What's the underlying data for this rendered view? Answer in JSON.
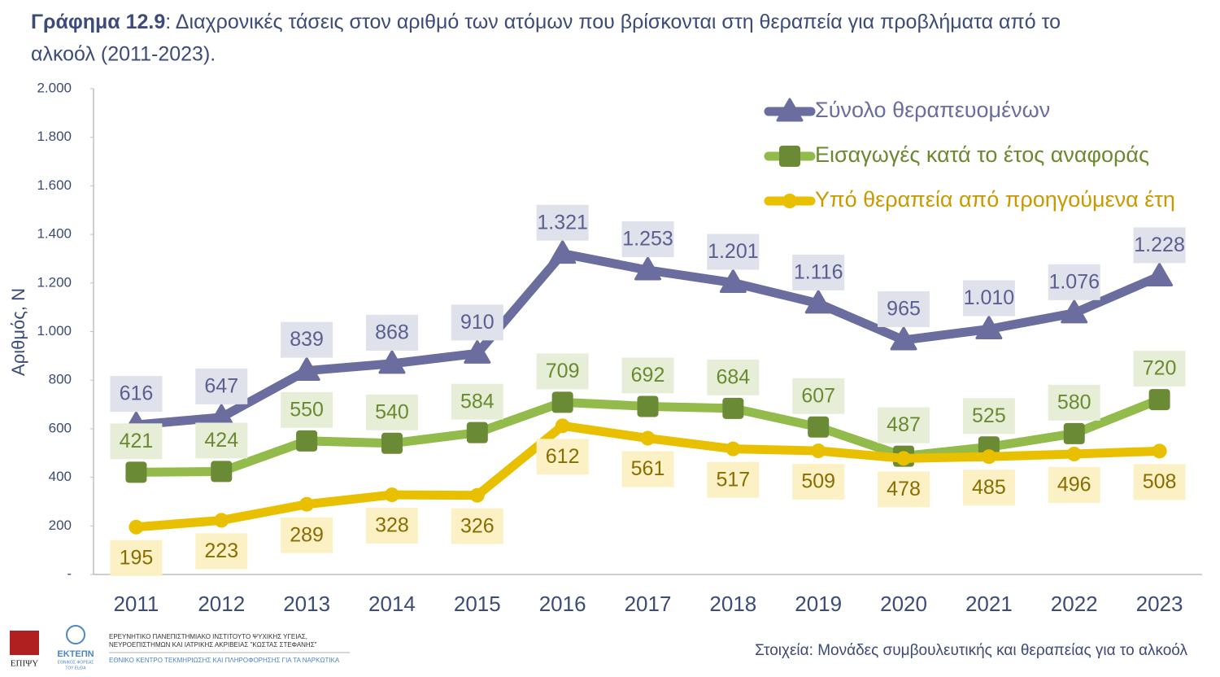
{
  "chart_data": {
    "type": "line",
    "title_label": "Γράφημα 12.9",
    "title": ": Διαχρονικές τάσεις στον αριθμό των ατόμων που βρίσκονται στη θεραπεία για προβλήματα από το",
    "title_line2": "αλκοόλ (2011-2023).",
    "y_label": "Αριθμός, N",
    "categories": [
      "2011",
      "2012",
      "2013",
      "2014",
      "2015",
      "2016",
      "2017",
      "2018",
      "2019",
      "2020",
      "2021",
      "2022",
      "2023"
    ],
    "series": [
      {
        "name": "Σύνολο θεραπευομένων",
        "color": "#6a6d9e",
        "marker": "triangle",
        "marker_color": "#6a6d9e",
        "label_position": "above",
        "values": [
          616,
          647,
          839,
          868,
          910,
          1321,
          1253,
          1201,
          1116,
          965,
          1010,
          1076,
          1228
        ],
        "value_labels": [
          "616",
          "647",
          "839",
          "868",
          "910",
          "1.321",
          "1.253",
          "1.201",
          "1.116",
          "965",
          "1.010",
          "1.076",
          "1.228"
        ]
      },
      {
        "name": "Εισαγωγές κατά το έτος αναφοράς",
        "color": "#92bb4b",
        "marker": "square",
        "marker_color": "#6b8a35",
        "label_position": "above",
        "values": [
          421,
          424,
          550,
          540,
          584,
          709,
          692,
          684,
          607,
          487,
          525,
          580,
          720
        ]
      },
      {
        "name": "Υπό θεραπεία από προηγούμενα έτη",
        "color": "#e8c000",
        "marker": "circle",
        "marker_color": "#e8c000",
        "label_position": "below",
        "values": [
          195,
          223,
          289,
          328,
          326,
          612,
          561,
          517,
          509,
          478,
          485,
          496,
          508
        ]
      }
    ],
    "ylim": [
      0,
      2000
    ],
    "yticks": [
      {
        "value": 0,
        "label": "-"
      },
      200,
      400,
      600,
      800,
      {
        "value": 1000,
        "label": "1.000"
      },
      {
        "value": 1200,
        "label": "1.200"
      },
      {
        "value": 1400,
        "label": "1.400"
      },
      {
        "value": 1600,
        "label": "1.600"
      },
      {
        "value": 1800,
        "label": "1.800"
      },
      {
        "value": 2000,
        "label": "2.000"
      }
    ],
    "grid": false,
    "legend": "top-right",
    "source": "Στοιχεία: Μονάδες συμβουλευτικής και θεραπείας για το αλκοόλ"
  },
  "footer": {
    "logo1": "ΕΠΙΨΥ",
    "logo2": "ΕΚΤΕΠΝ",
    "logo2_sub1": "ΕΘΝΙΚΟΣ ΦΟΡΕΑΣ",
    "logo2_sub2": "ΤΟΥ EUDA",
    "institute_line1": "ΕΡΕΥΝΗΤΙΚΟ ΠΑΝΕΠΙΣΤΗΜΙΑΚΟ ΙΝΣΤΙΤΟΥΤΟ ΨΥΧΙΚΗΣ ΥΓΕΙΑΣ,",
    "institute_line2": "ΝΕΥΡΟΕΠΙΣΤΗΜΩΝ ΚΑΙ ΙΑΤΡΙΚΗΣ ΑΚΡΙΒΕΙΑΣ \"ΚΩΣΤΑΣ ΣΤΕΦΑΝΗΣ\"",
    "centre": "ΕΘΝΙΚΟ ΚΕΝΤΡΟ ΤΕΚΜΗΡΙΩΣΗΣ ΚΑΙ ΠΛΗΡΟΦΟΡΗΣΗΣ ΓΙΑ ΤΑ ΝΑΡΚΩΤΙΚΑ"
  }
}
